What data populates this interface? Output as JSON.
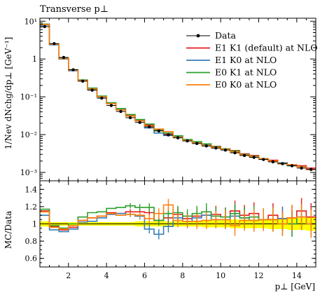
{
  "chart_data": [
    {
      "type": "line",
      "title": "Transverse p⊥",
      "ylabel": "1/Nev dNchg/dp⊥ [GeV⁻¹]",
      "xlabel": "",
      "yscale": "log",
      "ylim": [
        0.0006,
        12
      ],
      "xlim": [
        0.5,
        15
      ],
      "xtick_labels": [
        "2",
        "4",
        "6",
        "8",
        "10",
        "12",
        "14"
      ],
      "ytick_labels": [
        "10⁻³",
        "10⁻²",
        "10⁻¹",
        "1",
        "10¹"
      ],
      "legend_position": "top-right",
      "x_edges": [
        0.5,
        1.0,
        1.5,
        2.0,
        2.5,
        3.0,
        3.5,
        4.0,
        4.5,
        5.0,
        5.5,
        6.0,
        6.5,
        7.0,
        7.5,
        8.0,
        8.5,
        9.0,
        9.5,
        10.0,
        10.5,
        11.0,
        11.5,
        12.0,
        12.5,
        13.0,
        13.5,
        14.0,
        14.5,
        15.0
      ],
      "data": {
        "name": "Data",
        "color": "#000000",
        "values": [
          7.2,
          2.55,
          1.1,
          0.52,
          0.26,
          0.15,
          0.092,
          0.059,
          0.041,
          0.028,
          0.021,
          0.016,
          0.0125,
          0.0098,
          0.0082,
          0.0068,
          0.0058,
          0.005,
          0.0044,
          0.0039,
          0.0033,
          0.0028,
          0.0025,
          0.0022,
          0.0019,
          0.0017,
          0.0015,
          0.0013,
          0.0012
        ]
      },
      "series": [
        {
          "name": "E1 K1 (default) at NLO",
          "color": "#e41a1c",
          "values": [
            8.3,
            2.48,
            1.02,
            0.5,
            0.27,
            0.16,
            0.1,
            0.067,
            0.046,
            0.032,
            0.024,
            0.018,
            0.013,
            0.0105,
            0.0091,
            0.0072,
            0.0063,
            0.0055,
            0.0049,
            0.0042,
            0.0038,
            0.0031,
            0.0028,
            0.0023,
            0.0021,
            0.0018,
            0.0016,
            0.0015,
            0.0013
          ]
        },
        {
          "name": "E1 K0 at NLO",
          "color": "#377eb8",
          "values": [
            7.9,
            2.38,
            1.0,
            0.49,
            0.265,
            0.155,
            0.098,
            0.066,
            0.046,
            0.031,
            0.023,
            0.015,
            0.011,
            0.0095,
            0.0088,
            0.007,
            0.0062,
            0.0055,
            0.0046,
            0.0041,
            0.0036,
            0.003,
            0.0026,
            0.0023,
            0.002,
            0.0018,
            0.0015,
            0.0014,
            0.0012
          ]
        },
        {
          "name": "E0 K1 at NLO",
          "color": "#2ca02c",
          "values": [
            8.4,
            2.5,
            1.05,
            0.52,
            0.28,
            0.17,
            0.105,
            0.07,
            0.049,
            0.034,
            0.025,
            0.019,
            0.013,
            0.011,
            0.0093,
            0.0074,
            0.0065,
            0.0057,
            0.0048,
            0.0042,
            0.0037,
            0.003,
            0.0027,
            0.0023,
            0.002,
            0.0017,
            0.0015,
            0.0014,
            0.0012
          ]
        },
        {
          "name": "E0 K0 at NLO",
          "color": "#ff7f0e",
          "values": [
            8.2,
            2.46,
            1.03,
            0.51,
            0.27,
            0.16,
            0.1,
            0.066,
            0.045,
            0.031,
            0.023,
            0.017,
            0.014,
            0.012,
            0.0085,
            0.007,
            0.006,
            0.0052,
            0.0046,
            0.0041,
            0.0035,
            0.0029,
            0.0026,
            0.0023,
            0.002,
            0.0017,
            0.0016,
            0.0014,
            0.0012
          ]
        }
      ]
    },
    {
      "type": "line",
      "title": "",
      "ylabel": "MC/Data",
      "xlabel": "p⊥ [GeV]",
      "ylim": [
        0.5,
        1.5
      ],
      "xlim": [
        0.5,
        15
      ],
      "xtick_labels": [
        "2",
        "4",
        "6",
        "8",
        "10",
        "12",
        "14"
      ],
      "ytick_labels": [
        "0.6",
        "0.8",
        "1",
        "1.2",
        "1.4"
      ],
      "band_color": "#ffff00",
      "band_halfwidth": [
        0.03,
        0.02,
        0.02,
        0.02,
        0.02,
        0.02,
        0.02,
        0.02,
        0.02,
        0.02,
        0.03,
        0.03,
        0.03,
        0.03,
        0.03,
        0.03,
        0.03,
        0.04,
        0.04,
        0.04,
        0.05,
        0.05,
        0.05,
        0.05,
        0.06,
        0.06,
        0.07,
        0.07,
        0.08
      ],
      "series": [
        {
          "name": "E1 K1 (default) at NLO",
          "color": "#e41a1c",
          "values": [
            1.15,
            0.97,
            0.93,
            0.96,
            1.04,
            1.07,
            1.09,
            1.13,
            1.12,
            1.14,
            1.14,
            1.13,
            1.04,
            1.07,
            1.11,
            1.06,
            1.09,
            1.1,
            1.11,
            1.08,
            1.15,
            1.1,
            1.12,
            1.05,
            1.1,
            1.06,
            1.07,
            1.15,
            1.08
          ],
          "err": [
            0.01,
            0.01,
            0.01,
            0.01,
            0.01,
            0.02,
            0.02,
            0.02,
            0.02,
            0.03,
            0.04,
            0.05,
            0.06,
            0.07,
            0.08,
            0.08,
            0.09,
            0.1,
            0.1,
            0.11,
            0.12,
            0.12,
            0.13,
            0.13,
            0.14,
            0.14,
            0.15,
            0.15,
            0.16
          ]
        },
        {
          "name": "E1 K0 at NLO",
          "color": "#377eb8",
          "values": [
            1.1,
            0.93,
            0.91,
            0.94,
            1.02,
            1.03,
            1.07,
            1.11,
            1.12,
            1.11,
            1.09,
            0.94,
            0.88,
            0.97,
            1.07,
            1.03,
            1.07,
            1.1,
            1.05,
            1.05,
            1.09,
            1.07,
            1.04,
            1.05,
            1.05,
            1.06,
            1.0,
            1.08,
            1.0
          ],
          "err": [
            0.01,
            0.01,
            0.01,
            0.01,
            0.01,
            0.02,
            0.02,
            0.02,
            0.02,
            0.03,
            0.04,
            0.05,
            0.06,
            0.07,
            0.08,
            0.08,
            0.09,
            0.1,
            0.1,
            0.11,
            0.12,
            0.12,
            0.13,
            0.13,
            0.14,
            0.14,
            0.15,
            0.15,
            0.16
          ]
        },
        {
          "name": "E0 K1 at NLO",
          "color": "#2ca02c",
          "values": [
            1.17,
            0.98,
            0.95,
            1.0,
            1.08,
            1.13,
            1.14,
            1.18,
            1.19,
            1.21,
            1.19,
            1.19,
            1.04,
            1.12,
            1.13,
            1.09,
            1.12,
            1.14,
            1.09,
            1.08,
            1.12,
            1.07,
            1.08,
            1.05,
            1.05,
            1.0,
            1.0,
            1.08,
            1.0
          ],
          "err": [
            0.01,
            0.01,
            0.01,
            0.01,
            0.01,
            0.02,
            0.02,
            0.02,
            0.02,
            0.03,
            0.04,
            0.05,
            0.06,
            0.07,
            0.08,
            0.08,
            0.09,
            0.1,
            0.1,
            0.11,
            0.12,
            0.12,
            0.13,
            0.13,
            0.14,
            0.14,
            0.15,
            0.15,
            0.16
          ]
        },
        {
          "name": "E0 K0 at NLO",
          "color": "#ff7f0e",
          "values": [
            1.14,
            0.96,
            0.94,
            0.98,
            1.04,
            1.07,
            1.09,
            1.12,
            1.1,
            1.11,
            1.1,
            1.06,
            1.12,
            1.22,
            1.04,
            1.03,
            1.03,
            1.04,
            1.05,
            1.05,
            0.98,
            1.04,
            1.04,
            1.05,
            1.05,
            1.0,
            1.07,
            1.08,
            1.0
          ],
          "err": [
            0.01,
            0.01,
            0.01,
            0.01,
            0.01,
            0.02,
            0.02,
            0.02,
            0.02,
            0.03,
            0.04,
            0.05,
            0.06,
            0.07,
            0.08,
            0.08,
            0.09,
            0.1,
            0.1,
            0.11,
            0.12,
            0.12,
            0.13,
            0.13,
            0.14,
            0.14,
            0.15,
            0.15,
            0.16
          ]
        }
      ]
    }
  ]
}
